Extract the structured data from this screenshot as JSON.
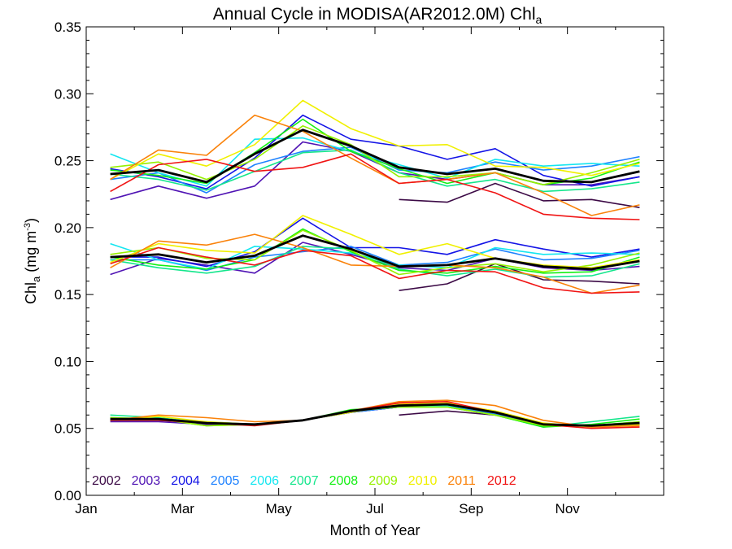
{
  "chart_data": {
    "type": "line",
    "title": "Annual Cycle in MODISA(AR2012.0M) Chl",
    "title_subscript": "a",
    "xlabel": "Month of Year",
    "ylabel": "Chl",
    "ylabel_subscript": "a",
    "ylabel_unit_prefix": " (mg m",
    "ylabel_unit_exponent": "-3",
    "ylabel_unit_suffix": ")",
    "xlim": [
      1,
      13
    ],
    "ylim": [
      0.0,
      0.35
    ],
    "x_ticks": [
      1,
      3,
      5,
      7,
      9,
      11
    ],
    "x_tick_labels": [
      "Jan",
      "Mar",
      "May",
      "Jul",
      "Sep",
      "Nov"
    ],
    "y_ticks": [
      0.0,
      0.05,
      0.1,
      0.15,
      0.2,
      0.25,
      0.3,
      0.35
    ],
    "y_tick_labels": [
      "0.00",
      "0.05",
      "0.10",
      "0.15",
      "0.20",
      "0.25",
      "0.30",
      "0.35"
    ],
    "grid": false,
    "legend_position": "bottom-left",
    "legend": [
      {
        "label": "2002",
        "color": "#3c0a46"
      },
      {
        "label": "2003",
        "color": "#5014b4"
      },
      {
        "label": "2004",
        "color": "#1414e6"
      },
      {
        "label": "2005",
        "color": "#1e82ff"
      },
      {
        "label": "2006",
        "color": "#14e6f0"
      },
      {
        "label": "2007",
        "color": "#14e68c"
      },
      {
        "label": "2008",
        "color": "#14f014"
      },
      {
        "label": "2009",
        "color": "#96f000"
      },
      {
        "label": "2010",
        "color": "#f0f000"
      },
      {
        "label": "2011",
        "color": "#fa820a"
      },
      {
        "label": "2012",
        "color": "#f01414"
      }
    ],
    "x": [
      1.5,
      2.5,
      3.5,
      4.5,
      5.5,
      6.5,
      7.5,
      8.5,
      9.5,
      10.5,
      11.5,
      12.5
    ],
    "groups": [
      {
        "group": "upper",
        "series": [
          {
            "year": "2002",
            "values": [
              null,
              null,
              null,
              null,
              null,
              null,
              0.221,
              0.219,
              0.233,
              0.22,
              0.221,
              0.215
            ]
          },
          {
            "year": "2003",
            "values": [
              0.221,
              0.231,
              0.222,
              0.231,
              0.264,
              0.257,
              0.241,
              0.236,
              0.241,
              0.232,
              0.232,
              0.238
            ]
          },
          {
            "year": "2004",
            "values": [
              0.244,
              0.238,
              0.229,
              0.252,
              0.284,
              0.266,
              0.261,
              0.251,
              0.259,
              0.239,
              0.231,
              0.238
            ]
          },
          {
            "year": "2005",
            "values": [
              0.236,
              0.241,
              0.226,
              0.247,
              0.257,
              0.26,
              0.243,
              0.241,
              0.249,
              0.243,
              0.246,
              0.253
            ]
          },
          {
            "year": "2006",
            "values": [
              0.255,
              0.241,
              0.231,
              0.266,
              0.267,
              0.257,
              0.247,
              0.237,
              0.251,
              0.246,
              0.248,
              0.246
            ]
          },
          {
            "year": "2007",
            "values": [
              0.24,
              0.236,
              0.228,
              0.242,
              0.256,
              0.258,
              0.241,
              0.231,
              0.236,
              0.227,
              0.229,
              0.234
            ]
          },
          {
            "year": "2008",
            "values": [
              0.243,
              0.239,
              0.233,
              0.256,
              0.281,
              0.257,
              0.244,
              0.233,
              0.241,
              0.232,
              0.237,
              0.249
            ]
          },
          {
            "year": "2009",
            "values": [
              0.245,
              0.249,
              0.236,
              0.251,
              0.276,
              0.262,
              0.238,
              0.238,
              0.241,
              0.232,
              0.241,
              0.251
            ]
          },
          {
            "year": "2010",
            "values": [
              0.236,
              0.255,
              0.246,
              0.262,
              0.295,
              0.274,
              0.261,
              0.262,
              0.246,
              0.245,
              0.239,
              0.248
            ]
          },
          {
            "year": "2011",
            "values": [
              0.236,
              0.258,
              0.254,
              0.284,
              0.272,
              0.252,
              0.233,
              0.236,
              0.241,
              0.226,
              0.209,
              0.217
            ]
          },
          {
            "year": "2012",
            "values": [
              0.227,
              0.247,
              0.251,
              0.242,
              0.245,
              0.255,
              0.233,
              0.236,
              0.226,
              0.21,
              0.207,
              0.206
            ]
          }
        ],
        "mean": [
          0.24,
          0.243,
          0.234,
          0.255,
          0.273,
          0.261,
          0.245,
          0.24,
          0.244,
          0.235,
          0.234,
          0.242
        ]
      },
      {
        "group": "middle",
        "series": [
          {
            "year": "2002",
            "values": [
              null,
              null,
              null,
              null,
              null,
              null,
              0.153,
              0.158,
              0.173,
              0.161,
              0.16,
              0.158
            ]
          },
          {
            "year": "2003",
            "values": [
              0.165,
              0.177,
              0.172,
              0.166,
              0.189,
              0.18,
              0.17,
              0.168,
              0.177,
              0.17,
              0.168,
              0.171
            ]
          },
          {
            "year": "2004",
            "values": [
              0.178,
              0.178,
              0.171,
              0.182,
              0.207,
              0.185,
              0.185,
              0.18,
              0.191,
              0.184,
              0.178,
              0.184
            ]
          },
          {
            "year": "2005",
            "values": [
              0.176,
              0.176,
              0.168,
              0.178,
              0.182,
              0.186,
              0.172,
              0.174,
              0.184,
              0.176,
              0.177,
              0.183
            ]
          },
          {
            "year": "2006",
            "values": [
              0.188,
              0.176,
              0.169,
              0.186,
              0.184,
              0.181,
              0.172,
              0.17,
              0.185,
              0.18,
              0.181,
              0.18
            ]
          },
          {
            "year": "2007",
            "values": [
              0.176,
              0.17,
              0.166,
              0.171,
              0.186,
              0.184,
              0.169,
              0.164,
              0.169,
              0.163,
              0.164,
              0.173
            ]
          },
          {
            "year": "2008",
            "values": [
              0.178,
              0.172,
              0.169,
              0.176,
              0.199,
              0.182,
              0.168,
              0.166,
              0.171,
              0.166,
              0.167,
              0.178
            ]
          },
          {
            "year": "2009",
            "values": [
              0.18,
              0.185,
              0.177,
              0.176,
              0.198,
              0.183,
              0.165,
              0.17,
              0.173,
              0.167,
              0.172,
              0.181
            ]
          },
          {
            "year": "2010",
            "values": [
              0.174,
              0.188,
              0.183,
              0.181,
              0.209,
              0.195,
              0.18,
              0.188,
              0.177,
              0.172,
              0.17,
              0.176
            ]
          },
          {
            "year": "2011",
            "values": [
              0.17,
              0.19,
              0.187,
              0.195,
              0.185,
              0.172,
              0.171,
              0.172,
              0.17,
              0.163,
              0.151,
              0.157
            ]
          },
          {
            "year": "2012",
            "values": [
              0.173,
              0.185,
              0.178,
              0.172,
              0.183,
              0.179,
              0.162,
              0.168,
              0.167,
              0.155,
              0.151,
              0.152
            ]
          }
        ],
        "mean": [
          0.178,
          0.18,
          0.174,
          0.179,
          0.194,
          0.184,
          0.171,
          0.172,
          0.177,
          0.171,
          0.169,
          0.175
        ]
      },
      {
        "group": "lower",
        "series": [
          {
            "year": "2002",
            "values": [
              null,
              null,
              null,
              null,
              null,
              null,
              0.06,
              0.063,
              0.06,
              0.052,
              0.052,
              0.053
            ]
          },
          {
            "year": "2003",
            "values": [
              0.055,
              0.055,
              0.053,
              0.053,
              0.056,
              0.062,
              0.066,
              0.067,
              0.061,
              0.053,
              0.052,
              0.053
            ]
          },
          {
            "year": "2004",
            "values": [
              0.056,
              0.056,
              0.054,
              0.053,
              0.056,
              0.062,
              0.066,
              0.067,
              0.061,
              0.053,
              0.052,
              0.054
            ]
          },
          {
            "year": "2005",
            "values": [
              0.056,
              0.056,
              0.054,
              0.053,
              0.056,
              0.062,
              0.066,
              0.067,
              0.061,
              0.052,
              0.052,
              0.054
            ]
          },
          {
            "year": "2006",
            "values": [
              0.057,
              0.057,
              0.055,
              0.053,
              0.056,
              0.063,
              0.067,
              0.067,
              0.062,
              0.052,
              0.052,
              0.055
            ]
          },
          {
            "year": "2007",
            "values": [
              0.06,
              0.058,
              0.054,
              0.053,
              0.056,
              0.063,
              0.066,
              0.066,
              0.06,
              0.051,
              0.055,
              0.059
            ]
          },
          {
            "year": "2008",
            "values": [
              0.058,
              0.057,
              0.052,
              0.053,
              0.056,
              0.064,
              0.066,
              0.066,
              0.06,
              0.051,
              0.053,
              0.057
            ]
          },
          {
            "year": "2009",
            "values": [
              0.058,
              0.057,
              0.052,
              0.053,
              0.056,
              0.063,
              0.066,
              0.066,
              0.06,
              0.052,
              0.052,
              0.055
            ]
          },
          {
            "year": "2010",
            "values": [
              0.056,
              0.059,
              0.055,
              0.053,
              0.056,
              0.062,
              0.068,
              0.069,
              0.063,
              0.054,
              0.051,
              0.053
            ]
          },
          {
            "year": "2011",
            "values": [
              0.056,
              0.06,
              0.058,
              0.055,
              0.056,
              0.063,
              0.07,
              0.071,
              0.067,
              0.056,
              0.051,
              0.052
            ]
          },
          {
            "year": "2012",
            "values": [
              0.056,
              0.056,
              0.054,
              0.052,
              0.056,
              0.063,
              0.069,
              0.07,
              0.062,
              0.053,
              0.05,
              0.051
            ]
          }
        ],
        "mean": [
          0.057,
          0.057,
          0.054,
          0.053,
          0.056,
          0.063,
          0.067,
          0.068,
          0.062,
          0.053,
          0.052,
          0.054
        ]
      }
    ],
    "mean_color": "#000000"
  }
}
